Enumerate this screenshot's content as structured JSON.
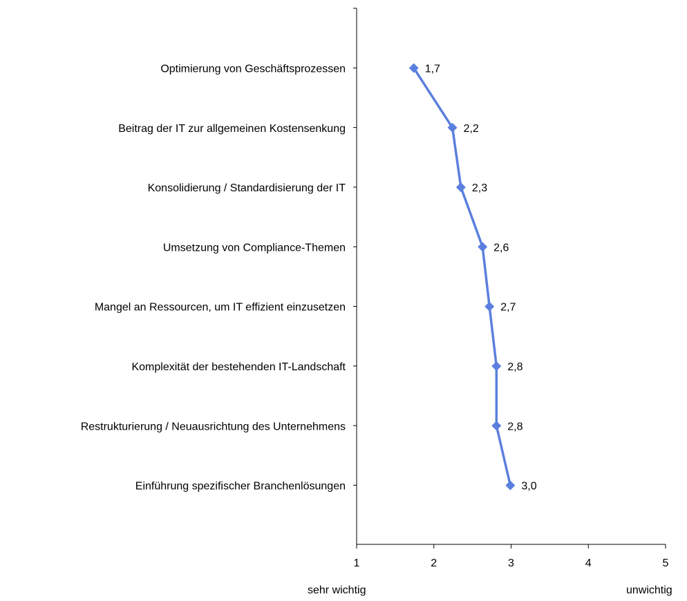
{
  "chart_data": {
    "type": "line",
    "orientation": "horizontal",
    "categories": [
      "Optimierung von Geschäftsprozessen",
      "Beitrag der IT zur allgemeinen Kostensenkung",
      "Konsolidierung / Standardisierung der IT",
      "Umsetzung von Compliance-Themen",
      "Mangel an Ressourcen, um IT effizient einzusetzen",
      "Komplexität der bestehenden IT-Landschaft",
      "Restrukturierung / Neuausrichtung des Unternehmens",
      "Einführung spezifischer Branchenlösungen"
    ],
    "values": [
      1.74,
      2.24,
      2.35,
      2.63,
      2.72,
      2.81,
      2.81,
      2.99
    ],
    "data_labels": [
      "1,7",
      "2,2",
      "2,3",
      "2,6",
      "2,7",
      "2,8",
      "2,8",
      "3,0"
    ],
    "x_ticks": [
      "1",
      "2",
      "3",
      "4",
      "5"
    ],
    "xlim": [
      1,
      5
    ],
    "x_left_label": "sehr wichtig",
    "x_right_label": "unwichtig",
    "grid": false,
    "legend": "none",
    "series_color": "#5b7fde",
    "axis_color": "#000000"
  }
}
